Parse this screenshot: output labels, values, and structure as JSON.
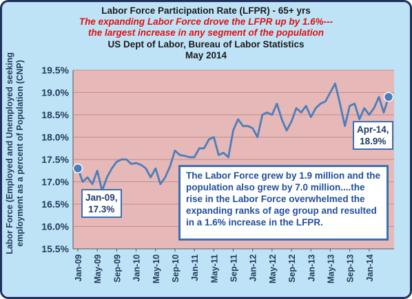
{
  "titles": {
    "line1": "Labor Force Participation Rate (LFPR) - 65+ yrs",
    "line2": "The expanding Labor Force drove the LFPR up by 1.6%---",
    "line3": "the largest increase in any segment of the population",
    "line4": "US Dept of Labor, Bureau of Labor Statistics",
    "line5": "May 2014"
  },
  "ylabel": "Labor Force (Employed and Unemployed seeking employment as a percent of Population (CNP)",
  "note": "The Labor Force grew by 1.9 million and the population also grew by 7.0 million....the rise in the Labor Force overwhelmed the expanding ranks of age group and resulted in  a 1.6% increase  in the LFPR.",
  "callouts": {
    "start": "Jan-09, 17.3%",
    "end": "Apr-14, 18.9%"
  },
  "colors": {
    "line": "#4a7ebb",
    "plot_bg": "#e6b8b7",
    "frame_bg": "#bfe3f6",
    "title_red": "#e01010"
  },
  "chart_data": {
    "type": "line",
    "ylim": [
      15.5,
      19.5
    ],
    "yticks": [
      "15.5%",
      "16.0%",
      "16.5%",
      "17.0%",
      "17.5%",
      "18.0%",
      "18.5%",
      "19.0%",
      "19.5%"
    ],
    "xticks": [
      "Jan-09",
      "May-09",
      "Sep-09",
      "Jan-10",
      "May-10",
      "Sep-10",
      "Jan-11",
      "May-11",
      "Sep-11",
      "Jan-12",
      "May-12",
      "Sep-12",
      "Jan-13",
      "May-13",
      "Sep-13",
      "Jan-14"
    ],
    "grid": true,
    "series": [
      {
        "start": "Jan-09",
        "values": [
          17.3,
          17.0,
          17.1,
          16.95,
          17.25,
          16.8,
          17.1,
          17.3,
          17.45,
          17.5,
          17.5,
          17.4,
          17.42,
          17.38,
          17.3,
          17.1,
          17.3,
          16.95,
          17.1,
          17.35,
          17.7,
          17.6,
          17.58,
          17.55,
          17.55,
          17.75,
          17.75,
          17.95,
          18.0,
          17.6,
          17.65,
          17.55,
          18.15,
          18.4,
          18.25,
          18.25,
          18.2,
          18.0,
          18.5,
          18.55,
          18.5,
          18.75,
          18.4,
          18.15,
          18.35,
          18.65,
          18.55,
          18.7,
          18.45,
          18.65,
          18.75,
          18.8,
          19.0,
          19.2,
          18.75,
          18.25,
          18.7,
          18.75,
          18.4,
          18.65,
          18.5,
          18.65,
          18.9,
          18.55,
          18.9
        ]
      }
    ]
  }
}
